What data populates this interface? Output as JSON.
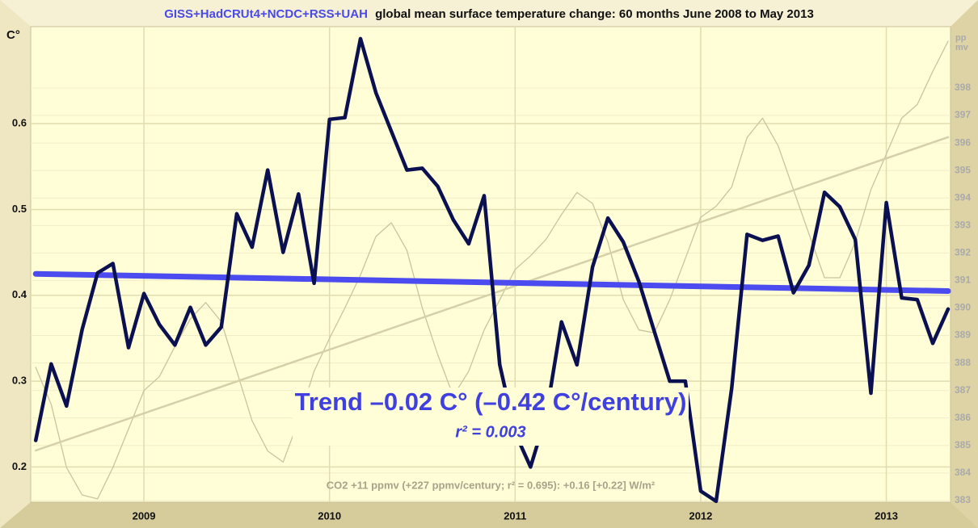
{
  "chart_data": {
    "type": "line",
    "title_datasets": "GISS+HadCRUt4+NCDC+RSS+UAH",
    "title": "global mean surface temperature change: 60 months June 2008 to May 2013",
    "ylabel": "C°",
    "y2label": [
      "pp",
      "mv"
    ],
    "annotations": {
      "trend": "Trend –0.02 C° (–0.42 C°/century)",
      "r2": "r² = 0.003",
      "co2": "CO2 +11 ppmv (+227 ppmv/century; r² = 0.695): +0.16 [+0.22] W/m²"
    },
    "x": [
      2008.417,
      2008.5,
      2008.583,
      2008.667,
      2008.75,
      2008.833,
      2008.917,
      2009,
      2009.083,
      2009.167,
      2009.25,
      2009.333,
      2009.417,
      2009.5,
      2009.583,
      2009.667,
      2009.75,
      2009.833,
      2009.917,
      2010,
      2010.083,
      2010.167,
      2010.25,
      2010.333,
      2010.417,
      2010.5,
      2010.583,
      2010.667,
      2010.75,
      2010.833,
      2010.917,
      2011,
      2011.083,
      2011.167,
      2011.25,
      2011.333,
      2011.417,
      2011.5,
      2011.583,
      2011.667,
      2011.75,
      2011.833,
      2011.917,
      2012,
      2012.083,
      2012.167,
      2012.25,
      2012.333,
      2012.417,
      2012.5,
      2012.583,
      2012.667,
      2012.75,
      2012.833,
      2012.917,
      2013,
      2013.083,
      2013.167,
      2013.25,
      2013.333
    ],
    "series": [
      {
        "color": "#c8c4a0",
        "axis": "y2",
        "width": 1.3,
        "values": [
          387.84,
          386.5,
          384.2,
          383.2,
          383.06,
          384.2,
          385.6,
          387.0,
          387.5,
          388.6,
          389.6,
          390.2,
          389.5,
          387.7,
          385.9,
          384.8,
          384.4,
          385.9,
          387.7,
          388.9,
          390.0,
          391.2,
          392.6,
          393.1,
          392.1,
          390.0,
          388.3,
          386.8,
          387.7,
          389.2,
          390.3,
          391.4,
          391.9,
          392.5,
          393.4,
          394.2,
          393.8,
          392.4,
          390.3,
          389.2,
          389.1,
          390.3,
          391.8,
          393.3,
          393.7,
          394.4,
          396.2,
          396.9,
          395.9,
          394.3,
          392.7,
          391.1,
          391.1,
          392.4,
          394.3,
          395.6,
          396.9,
          397.4,
          398.6,
          399.7
        ]
      },
      {
        "color": "#d6d0a8",
        "axis": "y2",
        "width": 2.5,
        "x": [
          2008.417,
          2013.333
        ],
        "values": [
          384.82,
          396.21
        ]
      },
      {
        "color": "#4b4bf0",
        "width": 7,
        "x": [
          2008.417,
          2013.333
        ],
        "values": [
          0.425,
          0.405
        ]
      },
      {
        "color": "#0b1150",
        "width": 4.5,
        "values": [
          0.231,
          0.32,
          0.271,
          0.36,
          0.426,
          0.437,
          0.339,
          0.402,
          0.366,
          0.342,
          0.386,
          0.342,
          0.363,
          0.495,
          0.456,
          0.546,
          0.45,
          0.518,
          0.414,
          0.605,
          0.607,
          0.699,
          0.636,
          0.591,
          0.546,
          0.548,
          0.527,
          0.488,
          0.46,
          0.516,
          0.319,
          0.24,
          0.2,
          0.26,
          0.369,
          0.319,
          0.433,
          0.49,
          0.462,
          0.416,
          0.358,
          0.3,
          0.3,
          0.172,
          0.16,
          0.292,
          0.471,
          0.464,
          0.469,
          0.403,
          0.435,
          0.52,
          0.503,
          0.465,
          0.286,
          0.508,
          0.397,
          0.395,
          0.344,
          0.384
        ]
      }
    ],
    "xlim": [
      2008.39,
      2013.346
    ],
    "xticks": [
      2009,
      2010,
      2011,
      2012,
      2013
    ],
    "ylim": [
      0.159,
      0.713
    ],
    "yticks": [
      0.2,
      0.3,
      0.4,
      0.5,
      0.6
    ],
    "y2lim": [
      382.94,
      400.23
    ],
    "y2ticks": [
      383,
      384,
      385,
      386,
      387,
      388,
      389,
      390,
      391,
      392,
      393,
      394,
      395,
      396,
      397,
      398
    ],
    "grid": true
  }
}
